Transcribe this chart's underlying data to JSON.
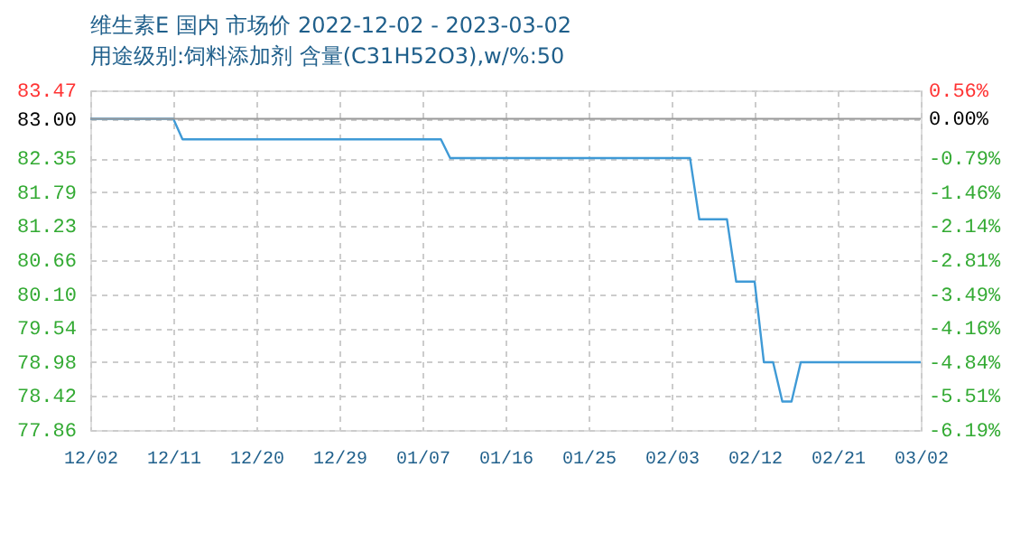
{
  "chart_data": {
    "type": "line",
    "title": "维生素E 国内 市场价 2022-12-02 - 2023-03-02",
    "subtitle": "用途级别:饲料添加剂 含量(C31H52O3),w/%:50",
    "x": [
      "2022-12-02",
      "2022-12-11",
      "2022-12-12",
      "2023-01-09",
      "2023-01-10",
      "2023-02-05",
      "2023-02-06",
      "2023-02-09",
      "2023-02-10",
      "2023-02-12",
      "2023-02-13",
      "2023-02-14",
      "2023-02-15",
      "2023-02-16",
      "2023-02-17",
      "2023-03-02"
    ],
    "series": [
      {
        "color": "#3f9ad6",
        "values": [
          83.0,
          83.0,
          82.66,
          82.66,
          82.35,
          82.35,
          81.34,
          81.34,
          80.31,
          80.31,
          78.98,
          78.98,
          78.33,
          78.33,
          78.98,
          78.98
        ]
      }
    ],
    "xlim": [
      "2022-12-02",
      "2023-03-02"
    ],
    "xticks": [
      {
        "value": "2022-12-02",
        "label": "12/02"
      },
      {
        "value": "2022-12-11",
        "label": "12/11"
      },
      {
        "value": "2022-12-20",
        "label": "12/20"
      },
      {
        "value": "2022-12-29",
        "label": "12/29"
      },
      {
        "value": "2023-01-07",
        "label": "01/07"
      },
      {
        "value": "2023-01-16",
        "label": "01/16"
      },
      {
        "value": "2023-01-25",
        "label": "01/25"
      },
      {
        "value": "2023-02-03",
        "label": "02/03"
      },
      {
        "value": "2023-02-12",
        "label": "02/12"
      },
      {
        "value": "2023-02-21",
        "label": "02/21"
      },
      {
        "value": "2023-03-02",
        "label": "03/02"
      }
    ],
    "ylim": [
      77.86,
      83.47
    ],
    "yticks": [
      {
        "value": 77.86,
        "label": "77.86"
      },
      {
        "value": 78.42,
        "label": "78.42"
      },
      {
        "value": 78.98,
        "label": "78.98"
      },
      {
        "value": 79.54,
        "label": "79.54"
      },
      {
        "value": 80.1,
        "label": "80.10"
      },
      {
        "value": 80.66,
        "label": "80.66"
      },
      {
        "value": 81.23,
        "label": "81.23"
      },
      {
        "value": 81.79,
        "label": "81.79"
      },
      {
        "value": 82.35,
        "label": "82.35"
      },
      {
        "value": 83.0,
        "label": "83.00"
      },
      {
        "value": 83.47,
        "label": "83.47"
      }
    ],
    "y2lim": [
      -6.19,
      0.56
    ],
    "y2ticks": [
      {
        "value": -6.19,
        "label": "-6.19%"
      },
      {
        "value": -5.51,
        "label": "-5.51%"
      },
      {
        "value": -4.84,
        "label": "-4.84%"
      },
      {
        "value": -4.16,
        "label": "-4.16%"
      },
      {
        "value": -3.49,
        "label": "-3.49%"
      },
      {
        "value": -2.81,
        "label": "-2.81%"
      },
      {
        "value": -2.14,
        "label": "-2.14%"
      },
      {
        "value": -1.46,
        "label": "-1.46%"
      },
      {
        "value": -0.79,
        "label": "-0.79%"
      },
      {
        "value": 0,
        "label": "0.00%"
      },
      {
        "value": 0.56,
        "label": "0.56%"
      }
    ],
    "ref_lines": [
      {
        "axis": "y",
        "value": 83.0,
        "color": "#999999"
      }
    ],
    "grid": true,
    "legend": false,
    "marker": "none",
    "line_style": "solid"
  }
}
